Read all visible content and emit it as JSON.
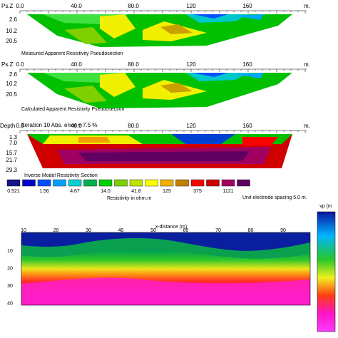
{
  "panels": [
    {
      "depth_label": "Ps.Z",
      "x_ticks": [
        "0.0",
        "40.0",
        "80.0",
        "120",
        "160"
      ],
      "x_unit": "m.",
      "depth_ticks": [
        "2.6",
        "10.2",
        "20.5"
      ],
      "caption": "Measured Apparent Resistivity Pseudosection"
    },
    {
      "depth_label": "Ps.Z",
      "x_ticks": [
        "0.0",
        "40.0",
        "80.0",
        "120",
        "160"
      ],
      "x_unit": "m.",
      "depth_ticks": [
        "2.6",
        "10.2",
        "20.5"
      ],
      "caption": "Calculated Apparent Resistivity Pseudosection"
    },
    {
      "depth_label": "Depth",
      "header": "Iteration 10 Abs. error = 7.5 %",
      "x_ticks": [
        "0.0",
        "40.0",
        "80.0",
        "120",
        "160"
      ],
      "x_unit": "m.",
      "depth_ticks": [
        "1.3",
        "7.0",
        "15.7",
        "21.7",
        "29.3"
      ],
      "caption": "Inverse Model Resistivity Section"
    }
  ],
  "legend": {
    "labels": [
      "0.521",
      "1.56",
      "4.67",
      "14.0",
      "41.8",
      "125",
      "375",
      "1121"
    ],
    "title": "Resistivity in ohm.m",
    "note": "Unit electrode spacing 5.0 m."
  },
  "lower": {
    "x_title": "x-distance (m)",
    "x_ticks": [
      "10",
      "20",
      "30",
      "40",
      "50",
      "60",
      "70",
      "80",
      "90"
    ],
    "y_ticks": [
      "10",
      "20",
      "30",
      "40"
    ],
    "colorbar_label": "vp (m"
  }
}
